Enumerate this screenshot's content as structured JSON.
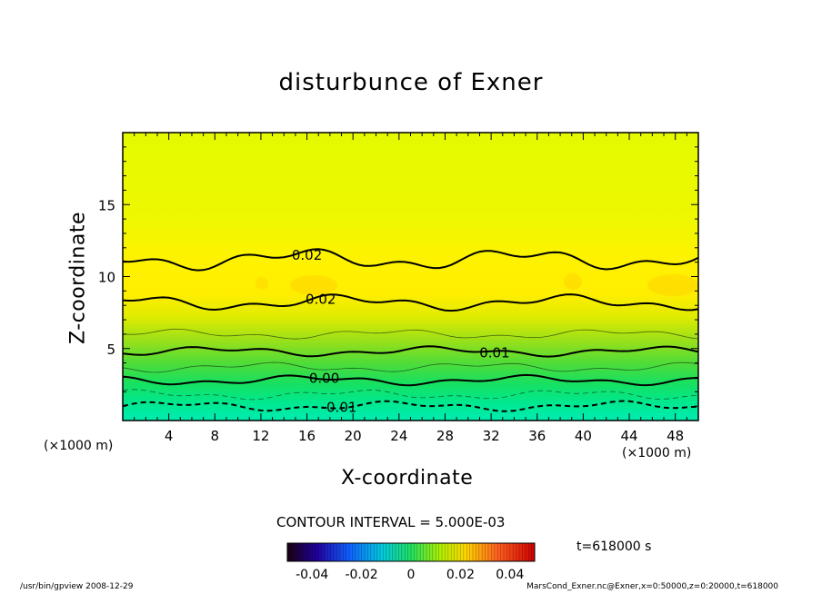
{
  "chart_data": {
    "type": "contour",
    "title": "disturbunce of Exner",
    "xlabel": "X-coordinate",
    "ylabel": "Z-coordinate",
    "x_unit": "(×1000 m)",
    "y_unit": "(×1000 m)",
    "xlim": [
      0,
      50
    ],
    "ylim": [
      0,
      20
    ],
    "x_ticks": [
      4,
      8,
      12,
      16,
      20,
      24,
      28,
      32,
      36,
      40,
      44,
      48
    ],
    "y_ticks": [
      5,
      10,
      15
    ],
    "contour_interval_label": "CONTOUR INTERVAL = 5.000E-03",
    "contour_levels": [
      {
        "value": -0.01,
        "label": "-0.01",
        "height": 1.0,
        "style": "dashed",
        "label_x": 18.8
      },
      {
        "value": -0.005,
        "height": 1.8,
        "style": "dashed-thin"
      },
      {
        "value": 0.0,
        "label": "0.00",
        "height": 2.8,
        "style": "solid",
        "label_x": 17.5
      },
      {
        "value": 0.005,
        "height": 3.7,
        "style": "thin"
      },
      {
        "value": 0.01,
        "label": "0.01",
        "height": 4.8,
        "style": "solid",
        "label_x": 32.3
      },
      {
        "value": 0.015,
        "height": 6.0,
        "style": "thin"
      },
      {
        "value": 0.02,
        "label": "0.02",
        "height": 8.2,
        "style": "solid",
        "label_x": 17.2
      },
      {
        "value": 0.02,
        "label": "0.02",
        "height": 11.2,
        "style": "solid",
        "label_x": 16.0
      }
    ],
    "colorbar": {
      "min": -0.05,
      "max": 0.05,
      "tick_labels": [
        "-0.04",
        "-0.02",
        "0",
        "0.02",
        "0.04"
      ],
      "tick_values": [
        -0.04,
        -0.02,
        0,
        0.02,
        0.04
      ]
    },
    "time_label": "t=618000 s"
  },
  "footer": {
    "left": "/usr/bin/gpview   2008-12-29",
    "right": "MarsCond_Exner.nc@Exner,x=0:50000,z=0:20000,t=618000"
  },
  "colors": {
    "background": "#ffffff",
    "low": "#00e6a8",
    "high": "#ffe600"
  }
}
